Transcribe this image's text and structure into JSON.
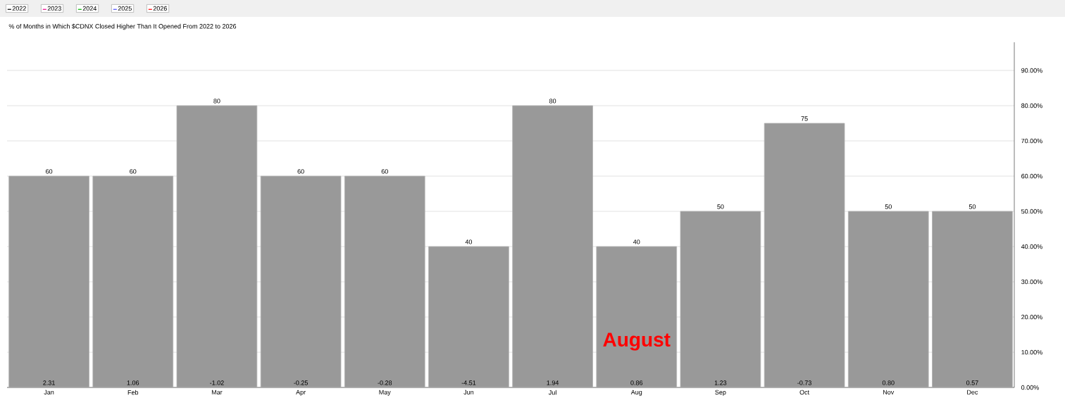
{
  "chart_data": {
    "type": "bar",
    "title": "% of Months in Which $CDNX Closed Higher Than It Opened From 2022 to 2026",
    "categories": [
      "Jan",
      "Feb",
      "Mar",
      "Apr",
      "May",
      "Jun",
      "Jul",
      "Aug",
      "Sep",
      "Oct",
      "Nov",
      "Dec"
    ],
    "values": [
      60,
      60,
      80,
      60,
      60,
      40,
      80,
      40,
      50,
      75,
      50,
      50
    ],
    "color": "#999999",
    "data_labels": true,
    "ylim": [
      0,
      98
    ],
    "yticks": [
      {
        "value": 0,
        "label": "0.00%"
      },
      {
        "value": 10,
        "label": "10.00%"
      },
      {
        "value": 20,
        "label": "20.00%"
      },
      {
        "value": 30,
        "label": "30.00%"
      },
      {
        "value": 40,
        "label": "40.00%"
      },
      {
        "value": 50,
        "label": "50.00%"
      },
      {
        "value": 60,
        "label": "60.00%"
      },
      {
        "value": 70,
        "label": "70.00%"
      },
      {
        "value": 80,
        "label": "80.00%"
      },
      {
        "value": 90,
        "label": "90.00%"
      }
    ],
    "grid": "y",
    "annotations": [
      "2022",
      "2023",
      "2024",
      "2025",
      "2026",
      {
        "text": "2.31",
        "x": "Jan",
        "y": 0
      },
      {
        "text": "1.06",
        "x": "Feb",
        "y": 0
      },
      {
        "text": "-1.02",
        "x": "Mar",
        "y": 0
      },
      {
        "text": "-0.25",
        "x": "Apr",
        "y": 0
      },
      {
        "text": "-0.28",
        "x": "May",
        "y": 0
      },
      {
        "text": "-4.51",
        "x": "Jun",
        "y": 0
      },
      {
        "text": "1.94",
        "x": "Jul",
        "y": 0
      },
      {
        "text": "0.86",
        "x": "Aug",
        "y": 0
      },
      {
        "text": "1.23",
        "x": "Sep",
        "y": 0
      },
      {
        "text": "-0.73",
        "x": "Oct",
        "y": 0
      },
      {
        "text": "0.80",
        "x": "Nov",
        "y": 0
      },
      {
        "text": "0.57",
        "x": "Dec",
        "y": 0
      },
      "August"
    ]
  }
}
